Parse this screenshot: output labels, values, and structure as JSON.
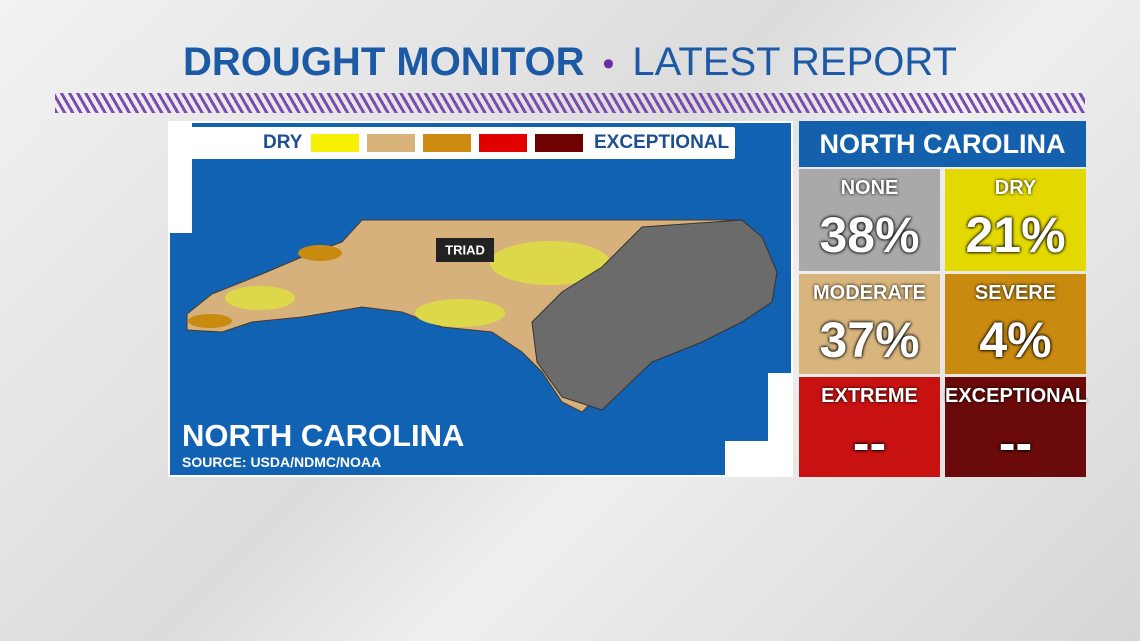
{
  "header": {
    "title": "DROUGHT MONITOR",
    "subtitle": "LATEST REPORT"
  },
  "map": {
    "legend": {
      "low": "DRY",
      "high": "EXCEPTIONAL"
    },
    "place": "TRIAD",
    "title": "NORTH CAROLINA",
    "source": "SOURCE: USDA/NDMC/NOAA"
  },
  "panel": {
    "title": "NORTH CAROLINA",
    "cells": [
      {
        "label": "NONE",
        "value": "38%"
      },
      {
        "label": "DRY",
        "value": "21%"
      },
      {
        "label": "MODERATE",
        "value": "37%"
      },
      {
        "label": "SEVERE",
        "value": "4%"
      },
      {
        "label": "EXTREME",
        "value": "--"
      },
      {
        "label": "EXCEPTIONAL",
        "value": "--"
      }
    ]
  }
}
